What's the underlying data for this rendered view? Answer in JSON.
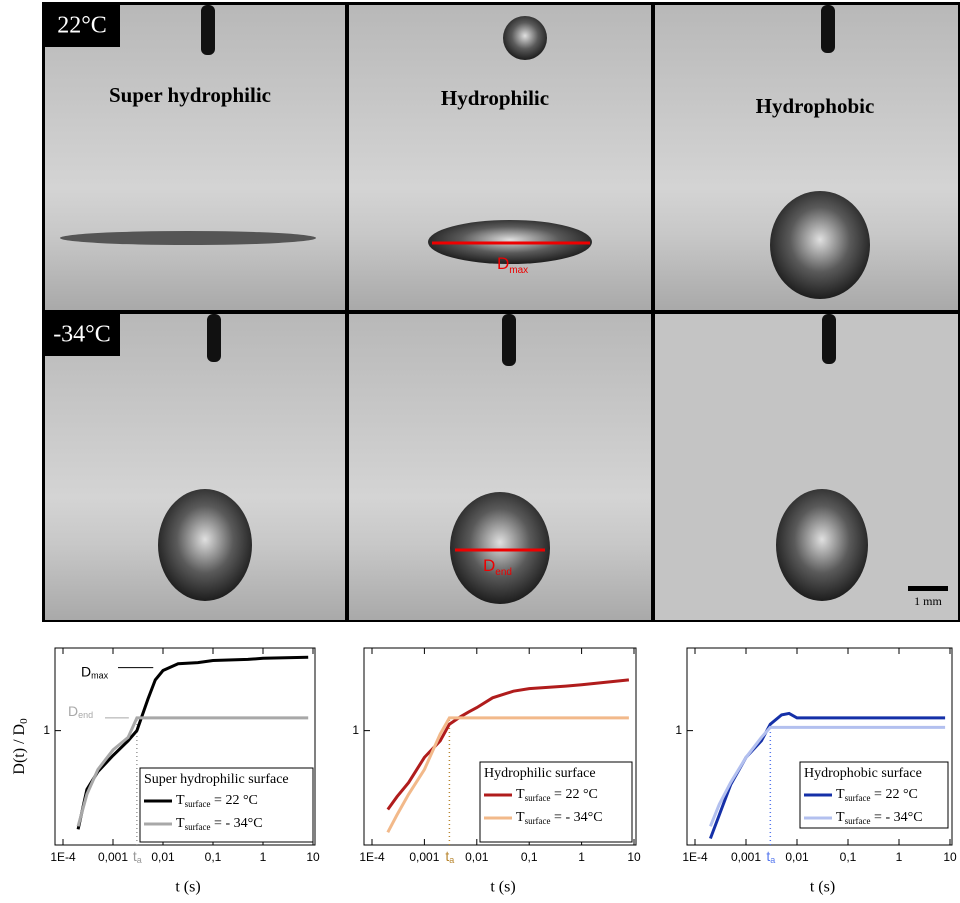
{
  "photos": {
    "row_labels": [
      "22°C",
      "-34°C"
    ],
    "surface_labels": [
      "Super hydrophilic",
      "Hydrophilic",
      "Hydrophobic"
    ],
    "dmax": {
      "text": "D",
      "sub": "max"
    },
    "dend": {
      "text": "D",
      "sub": "end"
    },
    "scale_bar": "1 mm"
  },
  "chart_data": [
    {
      "type": "line",
      "xscale": "log",
      "yscale": "log",
      "x": [
        0.0002,
        0.0003,
        0.0005,
        0.001,
        0.002,
        0.003,
        0.005,
        0.007,
        0.01,
        0.02,
        0.05,
        0.1,
        0.5,
        1,
        8
      ],
      "xlim": [
        0.0001,
        10
      ],
      "ylim": [
        0.5,
        1.65
      ],
      "xticks": [
        {
          "value": 0.0001,
          "label": "1E-4"
        },
        {
          "value": 0.001,
          "label": "0,001"
        },
        {
          "value": 0.01,
          "label": "0,01"
        },
        {
          "value": 0.1,
          "label": "0,1"
        },
        1,
        10
      ],
      "yticks": [
        1
      ],
      "x_label": "t (s)",
      "y_label": {
        "text": "D(t) / D",
        "sub": "0"
      },
      "legend": "lower right",
      "legend_title": "Super hydrophilic surface",
      "ta": {
        "value": 0.003,
        "label": "t",
        "sub": "a",
        "color": "#999999"
      },
      "annotations": [
        {
          "text": "D",
          "sub": "max"
        },
        {
          "text": "D",
          "sub": "end"
        }
      ],
      "series": [
        {
          "name": "T",
          "name_sub": "surface",
          "name_suffix": " = 22 °C",
          "color": "#000000",
          "values": [
            0.55,
            0.7,
            0.78,
            0.86,
            0.94,
            1.0,
            1.21,
            1.36,
            1.44,
            1.5,
            1.51,
            1.53,
            1.54,
            1.55,
            1.56
          ]
        },
        {
          "name": "T",
          "name_sub": "surface",
          "name_suffix": " = - 34°C",
          "color": "#a8a8a8",
          "values": [
            0.56,
            0.68,
            0.79,
            0.89,
            0.96,
            1.08,
            1.08,
            1.08,
            1.08,
            1.08,
            1.08,
            1.08,
            1.08,
            1.08,
            1.08
          ]
        }
      ]
    },
    {
      "type": "line",
      "xscale": "log",
      "yscale": "log",
      "x": [
        0.0002,
        0.0003,
        0.0005,
        0.001,
        0.002,
        0.003,
        0.005,
        0.007,
        0.01,
        0.02,
        0.05,
        0.1,
        0.5,
        1,
        8
      ],
      "xlim": [
        0.0001,
        10
      ],
      "ylim": [
        0.5,
        1.65
      ],
      "xticks": [
        {
          "value": 0.0001,
          "label": "1E-4"
        },
        {
          "value": 0.001,
          "label": "0,001"
        },
        {
          "value": 0.01,
          "label": "0,01"
        },
        {
          "value": 0.1,
          "label": "0,1"
        },
        1,
        10
      ],
      "yticks": [
        1
      ],
      "x_label": "t (s)",
      "legend": "lower right",
      "legend_title": "Hydrophilic surface",
      "ta": {
        "value": 0.003,
        "label": "t",
        "sub": "a",
        "color": "#b8862f"
      },
      "series": [
        {
          "name": "T",
          "name_sub": "surface",
          "name_suffix": " = 22 °C",
          "color": "#b01c1c",
          "values": [
            0.62,
            0.67,
            0.73,
            0.85,
            0.94,
            1.04,
            1.09,
            1.12,
            1.15,
            1.22,
            1.27,
            1.29,
            1.31,
            1.32,
            1.36
          ]
        },
        {
          "name": "T",
          "name_sub": "surface",
          "name_suffix": " = - 34°C",
          "color": "#f2b98a",
          "values": [
            0.54,
            0.6,
            0.68,
            0.79,
            0.98,
            1.08,
            1.08,
            1.08,
            1.08,
            1.08,
            1.08,
            1.08,
            1.08,
            1.08,
            1.08
          ]
        }
      ]
    },
    {
      "type": "line",
      "xscale": "log",
      "yscale": "log",
      "x": [
        0.0002,
        0.0003,
        0.0005,
        0.001,
        0.002,
        0.003,
        0.005,
        0.007,
        0.01,
        0.02,
        0.05,
        0.1,
        0.5,
        1,
        8
      ],
      "xlim": [
        0.0001,
        10
      ],
      "ylim": [
        0.5,
        1.65
      ],
      "xticks": [
        {
          "value": 0.0001,
          "label": "1E-4"
        },
        {
          "value": 0.001,
          "label": "0,001"
        },
        {
          "value": 0.01,
          "label": "0,01"
        },
        {
          "value": 0.1,
          "label": "0,1"
        },
        1,
        10
      ],
      "yticks": [
        1
      ],
      "x_label": "t (s)",
      "legend": "lower right",
      "legend_title": "Hydrophobic surface",
      "ta": {
        "value": 0.003,
        "label": "t",
        "sub": "a",
        "color": "#5577ee"
      },
      "series": [
        {
          "name": "T",
          "name_sub": "surface",
          "name_suffix": " = 22 °C",
          "color": "#1530a8",
          "values": [
            0.52,
            0.6,
            0.72,
            0.85,
            0.94,
            1.04,
            1.1,
            1.11,
            1.08,
            1.08,
            1.08,
            1.08,
            1.08,
            1.08,
            1.08
          ]
        },
        {
          "name": "T",
          "name_sub": "surface",
          "name_suffix": " = - 34°C",
          "color": "#b3c0ef",
          "values": [
            0.56,
            0.64,
            0.73,
            0.85,
            0.96,
            1.02,
            1.02,
            1.02,
            1.02,
            1.02,
            1.02,
            1.02,
            1.02,
            1.02,
            1.02
          ]
        }
      ]
    }
  ]
}
